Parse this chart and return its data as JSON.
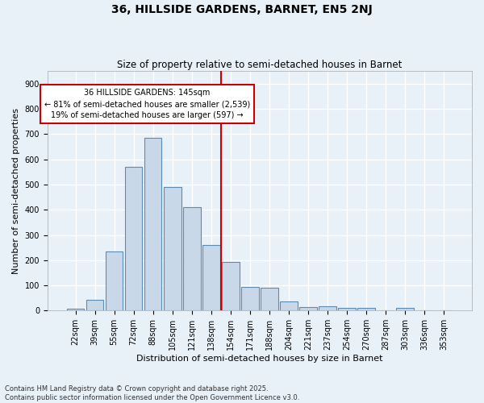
{
  "title": "36, HILLSIDE GARDENS, BARNET, EN5 2NJ",
  "subtitle": "Size of property relative to semi-detached houses in Barnet",
  "xlabel": "Distribution of semi-detached houses by size in Barnet",
  "ylabel": "Number of semi-detached properties",
  "categories": [
    "22sqm",
    "39sqm",
    "55sqm",
    "72sqm",
    "88sqm",
    "105sqm",
    "121sqm",
    "138sqm",
    "154sqm",
    "171sqm",
    "188sqm",
    "204sqm",
    "221sqm",
    "237sqm",
    "254sqm",
    "270sqm",
    "287sqm",
    "303sqm",
    "336sqm",
    "353sqm"
  ],
  "values": [
    8,
    42,
    235,
    570,
    685,
    490,
    410,
    260,
    193,
    93,
    90,
    35,
    15,
    18,
    12,
    11,
    0,
    12,
    2,
    0
  ],
  "bar_color": "#c8d8e8",
  "bar_edge_color": "#5a8db5",
  "bg_color": "#e8f0f8",
  "grid_color": "#ffffff",
  "vline_color": "#cc0000",
  "annotation_title": "36 HILLSIDE GARDENS: 145sqm",
  "annotation_line1": "← 81% of semi-detached houses are smaller (2,539)",
  "annotation_line2": "19% of semi-detached houses are larger (597) →",
  "annotation_box_color": "#cc0000",
  "ylim": [
    0,
    950
  ],
  "yticks": [
    0,
    100,
    200,
    300,
    400,
    500,
    600,
    700,
    800,
    900
  ],
  "footer": "Contains HM Land Registry data © Crown copyright and database right 2025.\nContains public sector information licensed under the Open Government Licence v3.0.",
  "title_fontsize": 10,
  "subtitle_fontsize": 8.5,
  "tick_fontsize": 7,
  "label_fontsize": 8,
  "footer_fontsize": 6
}
